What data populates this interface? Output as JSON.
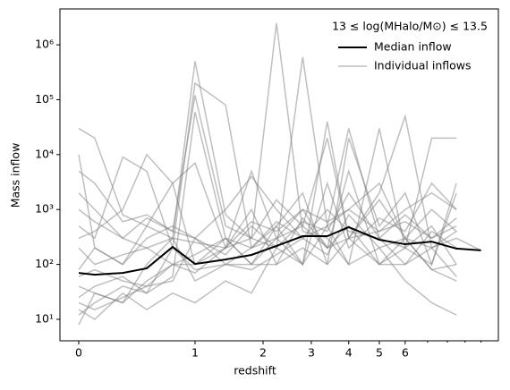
{
  "chart_data": {
    "type": "line",
    "xlabel": "redshift",
    "ylabel": "Mass inflow",
    "legend_title": "13 ≤ log(MHalo/M⊙) ≤ 13.5",
    "legend": "upper right",
    "xscale": "log1p",
    "yscale": "log",
    "xlim": [
      -0.106,
      11.2
    ],
    "ylim": [
      4.06,
      4500000
    ],
    "xticks": [
      0,
      1,
      2,
      3,
      4,
      5,
      6
    ],
    "xminorticks": [
      7,
      8,
      9,
      10
    ],
    "yticks": [
      {
        "value": 10,
        "label": "10¹"
      },
      {
        "value": 100,
        "label": "10²"
      },
      {
        "value": 1000,
        "label": "10³"
      },
      {
        "value": 10000,
        "label": "10⁴"
      },
      {
        "value": 100000,
        "label": "10⁵"
      },
      {
        "value": 1000000,
        "label": "10⁶"
      }
    ],
    "x": [
      0,
      0.1,
      0.3,
      0.5,
      0.75,
      1,
      1.4,
      1.8,
      2.25,
      2.8,
      3.4,
      4,
      5,
      6,
      7.2,
      8.5,
      10
    ],
    "series": [
      {
        "name": "Median inflow",
        "color": "#000000",
        "values": [
          70,
          65,
          70,
          85,
          208,
          102,
          123,
          149,
          217,
          327,
          327,
          477,
          281,
          233,
          260,
          194,
          180
        ]
      }
    ],
    "individual": {
      "name": "Individual inflows",
      "color": "#808080",
      "lines": [
        [
          30000,
          20000,
          800,
          500,
          300,
          500000,
          800,
          300,
          200,
          600000,
          500,
          30000,
          300,
          200,
          20000,
          20000,
          null
        ],
        [
          12,
          20,
          40,
          30,
          60,
          60000,
          300,
          100,
          500,
          100,
          40000,
          300,
          2000,
          50000,
          200,
          300,
          180
        ],
        [
          500,
          300,
          9000,
          5000,
          200,
          200000,
          80000,
          200,
          500,
          2000,
          100,
          20000,
          500,
          2000,
          100,
          2000,
          null
        ],
        [
          8,
          30,
          20,
          50,
          100,
          70,
          200,
          5000,
          300,
          1000,
          200,
          500,
          100,
          300,
          80,
          50,
          null
        ],
        [
          10000,
          200,
          100,
          500,
          3000,
          100,
          200,
          300,
          2500000,
          400,
          300,
          100,
          30000,
          200,
          500,
          100,
          null
        ],
        [
          25,
          40,
          60,
          30,
          200,
          80,
          100,
          200,
          300,
          100,
          3000,
          200,
          700,
          400,
          3000,
          1000,
          null
        ],
        [
          5000,
          3000,
          600,
          800,
          400,
          300,
          1000,
          4000,
          1000,
          300,
          500,
          1000,
          3000,
          300,
          1000,
          400,
          null
        ],
        [
          40,
          30,
          20,
          100,
          300,
          50,
          100,
          100,
          100,
          200,
          100,
          300,
          100,
          100,
          200,
          60,
          null
        ],
        [
          300,
          400,
          1000,
          10000,
          3000,
          7000,
          200,
          1000,
          100,
          700,
          200,
          5000,
          100,
          200,
          100,
          3000,
          null
        ],
        [
          15,
          10,
          30,
          15,
          30,
          20,
          50,
          30,
          200,
          100,
          500,
          100,
          200,
          50,
          20,
          12,
          null
        ],
        [
          2000,
          1000,
          300,
          200,
          100,
          100,
          300,
          200,
          600,
          300,
          1000,
          400,
          300,
          800,
          300,
          500,
          null
        ],
        [
          80,
          200,
          100,
          300,
          500,
          300,
          150,
          500,
          200,
          600,
          400,
          2000,
          300,
          100,
          400,
          200,
          null
        ],
        [
          20,
          15,
          25,
          40,
          50,
          300,
          100,
          80,
          150,
          300,
          150,
          800,
          200,
          300,
          80,
          100,
          null
        ],
        [
          1000,
          600,
          300,
          700,
          400,
          120000,
          500,
          300,
          1500,
          500,
          20000,
          300,
          400,
          1000,
          2000,
          1000,
          null
        ],
        [
          60,
          80,
          50,
          40,
          100,
          150,
          300,
          100,
          300,
          500,
          200,
          300,
          1500,
          300,
          200,
          400,
          null
        ],
        [
          200,
          100,
          150,
          200,
          300,
          250,
          200,
          600,
          400,
          1000,
          600,
          1000,
          400,
          600,
          300,
          700,
          null
        ]
      ]
    }
  }
}
